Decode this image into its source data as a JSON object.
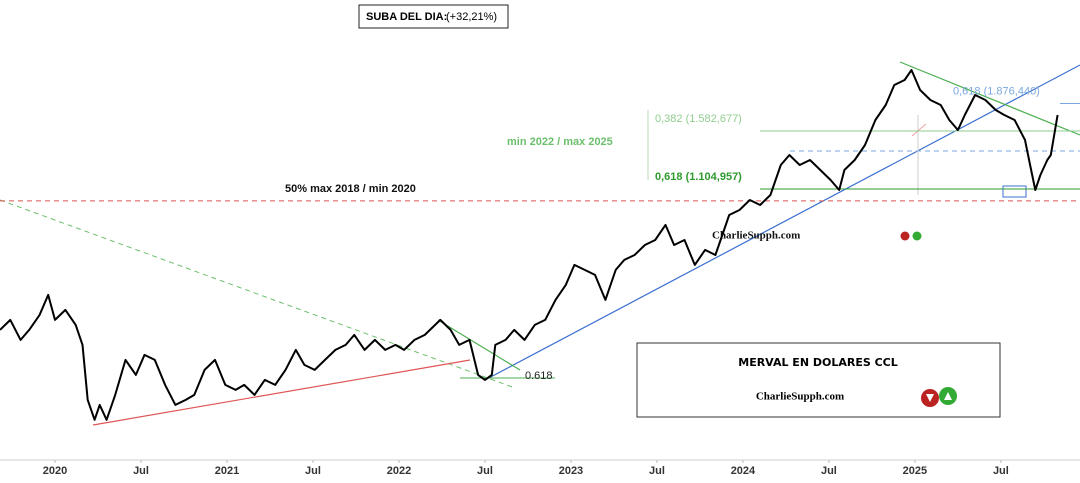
{
  "chart_data": {
    "type": "line",
    "log_scale": true,
    "color": "#000000",
    "xlim": [
      2019.68,
      2025.96
    ],
    "ylim": [
      206000,
      3564000
    ],
    "xticks": [
      {
        "value": 2020,
        "label": "2020"
      },
      {
        "value": 2020.5,
        "label": "Jul"
      },
      {
        "value": 2021,
        "label": "2021"
      },
      {
        "value": 2021.5,
        "label": "Jul"
      },
      {
        "value": 2022,
        "label": "2022"
      },
      {
        "value": 2022.5,
        "label": "Jul"
      },
      {
        "value": 2023,
        "label": "2023"
      },
      {
        "value": 2023.5,
        "label": "Jul"
      },
      {
        "value": 2024,
        "label": "2024"
      },
      {
        "value": 2024.5,
        "label": "Jul"
      },
      {
        "value": 2025,
        "label": "2025"
      },
      {
        "value": 2025.5,
        "label": "Jul"
      }
    ],
    "x": [
      2019.68,
      2019.74,
      2019.8,
      2019.85,
      2019.91,
      2019.96,
      2020.0,
      2020.06,
      2020.12,
      2020.16,
      2020.19,
      2020.23,
      2020.26,
      2020.3,
      2020.35,
      2020.41,
      2020.47,
      2020.52,
      2020.58,
      2020.64,
      2020.7,
      2020.76,
      2020.81,
      2020.87,
      2020.93,
      2020.99,
      2021.05,
      2021.1,
      2021.16,
      2021.22,
      2021.28,
      2021.34,
      2021.4,
      2021.45,
      2021.51,
      2021.57,
      2021.63,
      2021.69,
      2021.74,
      2021.8,
      2021.86,
      2021.92,
      2021.98,
      2022.03,
      2022.09,
      2022.15,
      2022.24,
      2022.3,
      2022.35,
      2022.41,
      2022.46,
      2022.5,
      2022.54,
      2022.56,
      2022.62,
      2022.67,
      2022.73,
      2022.79,
      2022.85,
      2022.91,
      2022.97,
      2023.02,
      2023.08,
      2023.14,
      2023.2,
      2023.26,
      2023.31,
      2023.37,
      2023.43,
      2023.49,
      2023.55,
      2023.6,
      2023.66,
      2023.72,
      2023.78,
      2023.84,
      2023.87,
      2023.92,
      2023.98,
      2024.04,
      2024.1,
      2024.16,
      2024.22,
      2024.27,
      2024.33,
      2024.39,
      2024.45,
      2024.51,
      2024.56,
      2024.59,
      2024.65,
      2024.71,
      2024.77,
      2024.83,
      2024.88,
      2024.94,
      2024.98,
      2025.03,
      2025.09,
      2025.15,
      2025.2,
      2025.25,
      2025.29,
      2025.35,
      2025.41,
      2025.47,
      2025.52,
      2025.58,
      2025.64,
      2025.67,
      2025.7,
      2025.73,
      2025.77,
      2025.79,
      2025.83
    ],
    "values": [
      461300,
      490800,
      433600,
      461300,
      506200,
      573000,
      490800,
      522200,
      475800,
      420400,
      299000,
      264200,
      289900,
      264200,
      308400,
      383100,
      349100,
      395100,
      383100,
      328100,
      289900,
      299000,
      308400,
      360100,
      383100,
      328100,
      318100,
      328100,
      308400,
      338500,
      328100,
      360100,
      407600,
      371400,
      360100,
      383100,
      407600,
      420400,
      447200,
      407600,
      433600,
      407600,
      420400,
      407600,
      433600,
      447200,
      490800,
      461300,
      420400,
      433600,
      349100,
      338500,
      349100,
      420400,
      433600,
      461300,
      433600,
      475800,
      490800,
      555500,
      609600,
      690000,
      669000,
      648600,
      555500,
      669000,
      711700,
      734000,
      781000,
      805600,
      884100,
      781000,
      805600,
      690000,
      757200,
      734000,
      805600,
      940600,
      970200,
      1032200,
      1000700,
      1064700,
      1282100,
      1364100,
      1282100,
      1322500,
      1243100,
      1168400,
      1098200,
      1243100,
      1322500,
      1451200,
      1694400,
      1859400,
      2104600,
      2170900,
      2309600,
      2040500,
      1917900,
      1859400,
      1694400,
      1592600,
      1747700,
      1978200,
      1917900,
      1802700,
      1747700,
      1694400,
      1496900,
      1282100,
      1098200,
      1205100,
      1322500,
      1364100,
      1747700
    ],
    "levels": [
      {
        "text": "0,382 (1.582,677)",
        "value": 1582677,
        "color": "#8fce8f"
      },
      {
        "text": "0,618 (1.104,957)",
        "value": 1104957,
        "color": "#2e9a2e"
      },
      {
        "text": "0,618 (1.876,440)",
        "value": 1876440,
        "color": "#7aa9e0"
      },
      {
        "text": "50% max 2018 / min 2020",
        "value": 1026000,
        "color": "#d9534f"
      }
    ],
    "annotations": {
      "fib_range": "min 2022 / max 2025",
      "retracement": "0.618"
    },
    "badge": {
      "label": "SUBA DEL DIA:",
      "value": "(+32,21%)"
    },
    "title": "MERVAL EN DOLARES CCL",
    "brand": "CharlieSupph.com",
    "watermark": "CharlieSupph.com"
  }
}
